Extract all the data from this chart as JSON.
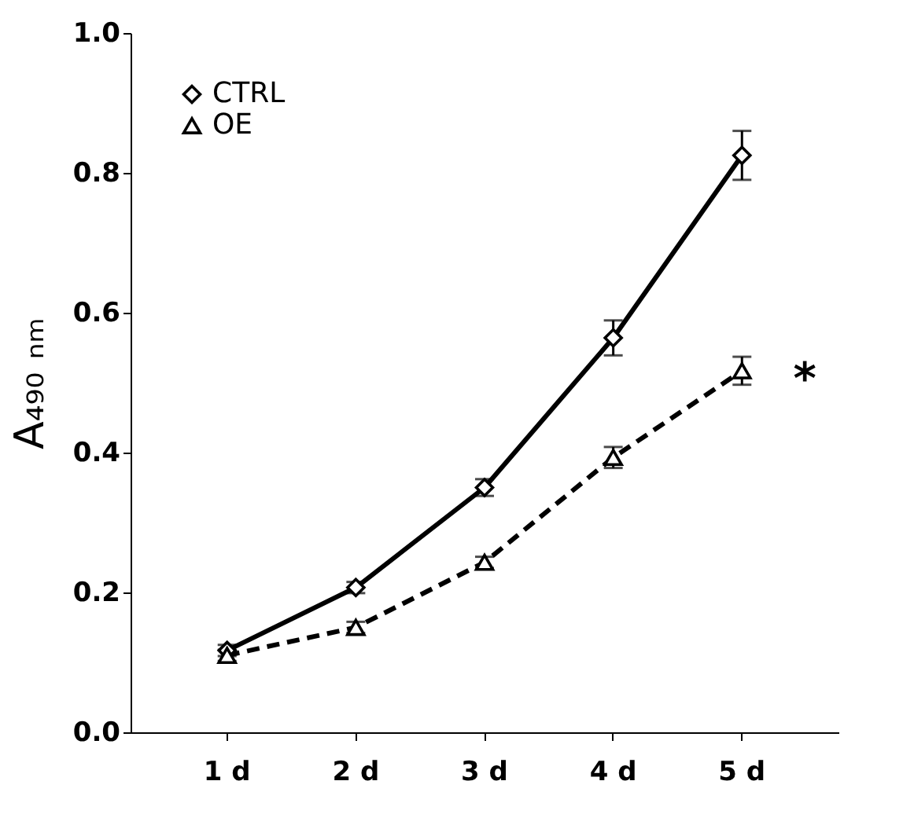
{
  "chart_data": {
    "type": "line",
    "ylabel": "A₄₉₀ ₙₘ",
    "categories": [
      "1 d",
      "2 d",
      "3 d",
      "4 d",
      "5 d"
    ],
    "ylim": [
      0,
      1
    ],
    "yticks": [
      {
        "value": 0,
        "label": "0.0"
      },
      {
        "value": 0.2,
        "label": "0.2"
      },
      {
        "value": 0.4,
        "label": "0.4"
      },
      {
        "value": 0.6,
        "label": "0.6"
      },
      {
        "value": 0.8,
        "label": "0.8"
      },
      {
        "value": 1,
        "label": "1.0"
      }
    ],
    "series": [
      {
        "name": "CTRL",
        "color": "#000000",
        "marker": "diamond",
        "line_style": "solid",
        "values": [
          0.117,
          0.207,
          0.35,
          0.564,
          0.825
        ],
        "errors": [
          0.008,
          0.008,
          0.012,
          0.025,
          0.035
        ]
      },
      {
        "name": "OE",
        "color": "#000000",
        "marker": "triangle",
        "line_style": "dashed",
        "values": [
          0.11,
          0.15,
          0.243,
          0.393,
          0.517
        ],
        "errors": [
          0.008,
          0.008,
          0.008,
          0.015,
          0.02
        ]
      }
    ],
    "annotations": [
      {
        "text": "*",
        "x": "5 d",
        "y": 0.52
      }
    ],
    "grid": false,
    "legend": "top left"
  }
}
